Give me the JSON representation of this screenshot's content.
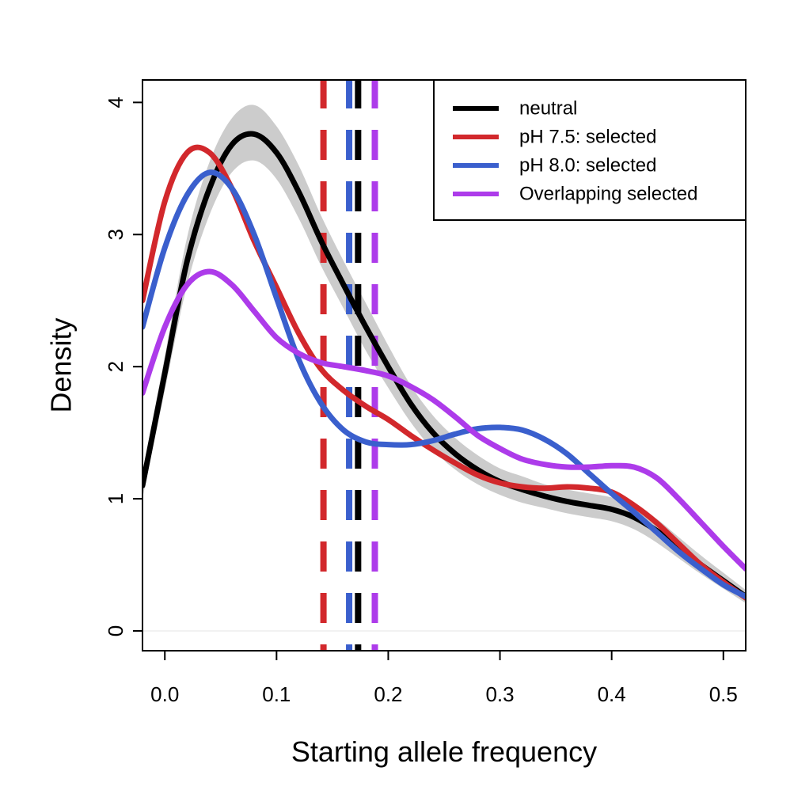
{
  "chart_data": {
    "type": "line",
    "title": "",
    "xlabel": "Starting allele frequency",
    "ylabel": "Density",
    "xlim": [
      -0.02,
      0.52
    ],
    "ylim": [
      -0.15,
      4.17
    ],
    "xticks": [
      0.0,
      0.1,
      0.2,
      0.3,
      0.4,
      0.5
    ],
    "xtick_labels": [
      "0.0",
      "0.1",
      "0.2",
      "0.3",
      "0.4",
      "0.5"
    ],
    "yticks": [
      0,
      1,
      2,
      3,
      4
    ],
    "ytick_labels": [
      "0",
      "1",
      "2",
      "3",
      "4"
    ],
    "grid": false,
    "legend_position": "top-right",
    "x": [
      -0.02,
      0.0,
      0.02,
      0.04,
      0.06,
      0.08,
      0.1,
      0.12,
      0.14,
      0.16,
      0.18,
      0.2,
      0.22,
      0.24,
      0.26,
      0.28,
      0.3,
      0.32,
      0.34,
      0.36,
      0.38,
      0.4,
      0.42,
      0.44,
      0.46,
      0.48,
      0.5,
      0.52
    ],
    "series": [
      {
        "name": "neutral",
        "color": "#000000",
        "values": [
          1.1,
          1.95,
          2.8,
          3.35,
          3.68,
          3.76,
          3.62,
          3.32,
          2.95,
          2.62,
          2.3,
          2.0,
          1.72,
          1.5,
          1.34,
          1.22,
          1.13,
          1.07,
          1.02,
          0.98,
          0.95,
          0.92,
          0.86,
          0.76,
          0.63,
          0.5,
          0.38,
          0.26
        ],
        "band_low": [
          1.0,
          1.82,
          2.62,
          3.15,
          3.47,
          3.56,
          3.42,
          3.12,
          2.76,
          2.44,
          2.12,
          1.84,
          1.58,
          1.37,
          1.22,
          1.11,
          1.03,
          0.97,
          0.93,
          0.89,
          0.86,
          0.83,
          0.77,
          0.67,
          0.55,
          0.43,
          0.32,
          0.21
        ],
        "band_high": [
          1.2,
          2.08,
          2.98,
          3.55,
          3.88,
          3.98,
          3.82,
          3.52,
          3.14,
          2.8,
          2.48,
          2.16,
          1.86,
          1.63,
          1.46,
          1.33,
          1.23,
          1.17,
          1.11,
          1.07,
          1.04,
          1.01,
          0.95,
          0.85,
          0.71,
          0.57,
          0.44,
          0.31
        ]
      },
      {
        "name": "pH 7.5: selected",
        "color": "#d2282c",
        "values": [
          2.5,
          3.25,
          3.62,
          3.62,
          3.35,
          2.95,
          2.6,
          2.25,
          1.98,
          1.82,
          1.7,
          1.6,
          1.48,
          1.37,
          1.27,
          1.18,
          1.12,
          1.09,
          1.08,
          1.09,
          1.08,
          1.05,
          0.95,
          0.82,
          0.66,
          0.5,
          0.37,
          0.25
        ]
      },
      {
        "name": "pH 8.0: selected",
        "color": "#3a5fcd",
        "values": [
          2.3,
          2.9,
          3.3,
          3.47,
          3.35,
          3.0,
          2.52,
          2.05,
          1.72,
          1.52,
          1.43,
          1.41,
          1.41,
          1.44,
          1.49,
          1.53,
          1.54,
          1.52,
          1.45,
          1.34,
          1.19,
          1.04,
          0.9,
          0.75,
          0.6,
          0.47,
          0.35,
          0.26
        ]
      },
      {
        "name": "Overlapping selected",
        "color": "#ad3bea",
        "values": [
          1.8,
          2.3,
          2.62,
          2.72,
          2.62,
          2.42,
          2.22,
          2.1,
          2.03,
          2.0,
          1.97,
          1.93,
          1.85,
          1.75,
          1.62,
          1.48,
          1.38,
          1.3,
          1.26,
          1.24,
          1.24,
          1.25,
          1.24,
          1.16,
          1.0,
          0.82,
          0.64,
          0.47
        ]
      }
    ],
    "vlines": [
      {
        "series": "pH 7.5: selected",
        "x": 0.142,
        "color": "#d2282c"
      },
      {
        "series": "pH 8.0: selected",
        "x": 0.165,
        "color": "#3a5fcd"
      },
      {
        "series": "neutral",
        "x": 0.173,
        "color": "#000000"
      },
      {
        "series": "Overlapping selected",
        "x": 0.188,
        "color": "#ad3bea"
      }
    ]
  }
}
